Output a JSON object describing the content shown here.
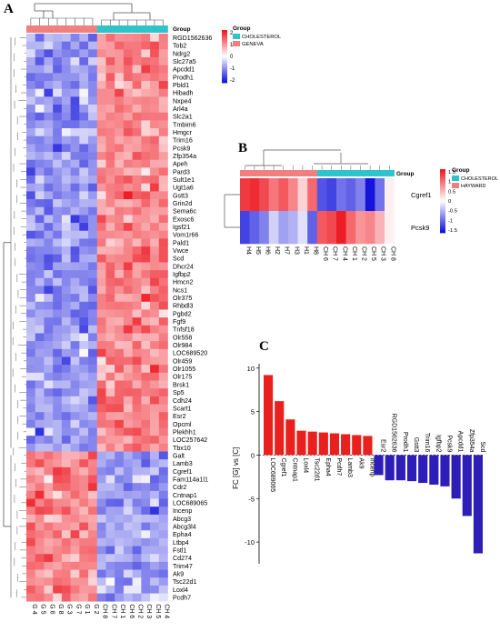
{
  "panels": {
    "a": {
      "letter": "A",
      "legend_title": "Group",
      "groups": [
        {
          "name": "CHOLESTEROL",
          "color": "#2EC4C9"
        },
        {
          "name": "GENEVA",
          "color": "#F08080"
        }
      ],
      "scale_ticks": [
        "2",
        "1",
        "0",
        "-1",
        "-2"
      ],
      "columns": [
        "G 4",
        "G 5",
        "G 6",
        "G 8",
        "G 3",
        "G 7",
        "G 1",
        "G 2",
        "CH 8",
        "CH 7",
        "CH 1",
        "CH 6",
        "CH 2",
        "CH 3",
        "CH 5",
        "CH 4"
      ],
      "column_groups": [
        "GENEVA",
        "GENEVA",
        "GENEVA",
        "GENEVA",
        "GENEVA",
        "GENEVA",
        "GENEVA",
        "GENEVA",
        "CHOLESTEROL",
        "CHOLESTEROL",
        "CHOLESTEROL",
        "CHOLESTEROL",
        "CHOLESTEROL",
        "CHOLESTEROL",
        "CHOLESTEROL",
        "CHOLESTEROL"
      ],
      "genes_up_in_cholesterol": [
        "RGD1562636",
        "Tob2",
        "Ndrg2",
        "Slc27a5",
        "Apcdd1",
        "Prodh1",
        "Pbld1",
        "Hibadh",
        "Nxpe4",
        "Arl4a",
        "Slc2a1",
        "Tmbim6",
        "Hmgcr",
        "Trim16",
        "Pcsk9",
        "Zfp354a",
        "Apeh",
        "Pard3",
        "Sult1e1",
        "Ugt1a6",
        "Gstt3",
        "Grin2d",
        "Sema6c",
        "Exosc6",
        "Igsf21",
        "Vom1r66",
        "Pald1",
        "Vwce",
        "Scd",
        "Dhcr24",
        "Igfbp2",
        "Hmcn2",
        "Ncs1",
        "Olr375",
        "Rhbdl3",
        "Pgbd2",
        "Fgf9",
        "Tnfsf18",
        "Olr558",
        "Olr984",
        "LOC689520",
        "Olr459",
        "Olr1055",
        "Olr175",
        "Brsk1",
        "Sp5",
        "Cdh24",
        "Scart1",
        "Esr2",
        "Opcml",
        "Plekhh1",
        "LOC257642",
        "Tbx10"
      ],
      "genes_down_in_cholesterol": [
        "Galt",
        "Lamb3",
        "Cgref1",
        "Fam114a1l1",
        "Cdr2",
        "Cntnap1",
        "LOC689065",
        "Incenp",
        "Abcg3",
        "Abcg3l4",
        "Epha4",
        "Ltbp4",
        "Fstl1",
        "Cd274",
        "Trim47",
        "Ak9",
        "Tsc22d1",
        "Loxl4",
        "Pcdh7"
      ]
    },
    "b": {
      "letter": "B",
      "legend_title": "Group",
      "groups": [
        {
          "name": "CHOLESTEROL",
          "color": "#2EC4C9"
        },
        {
          "name": "HAYWARD",
          "color": "#F08080"
        }
      ],
      "scale_ticks": [
        "1.5",
        "1",
        "0.5",
        "0",
        "-0.5",
        "-1",
        "-1.5"
      ],
      "columns": [
        "H4",
        "H5",
        "H6",
        "H2",
        "H7",
        "H3",
        "H1",
        "H8",
        "CH 6",
        "CH 7",
        "CH 4",
        "CH 1",
        "CH 2",
        "CH 5",
        "CH 3",
        "CH 8"
      ],
      "column_groups": [
        "HAYWARD",
        "HAYWARD",
        "HAYWARD",
        "HAYWARD",
        "HAYWARD",
        "HAYWARD",
        "HAYWARD",
        "HAYWARD",
        "CHOLESTEROL",
        "CHOLESTEROL",
        "CHOLESTEROL",
        "CHOLESTEROL",
        "CHOLESTEROL",
        "CHOLESTEROL",
        "CHOLESTEROL",
        "CHOLESTEROL"
      ],
      "rows": [
        {
          "gene": "Cgref1",
          "values": [
            1.3,
            1.4,
            1.2,
            0.9,
            1.1,
            0.8,
            0.3,
            1.0,
            -1.1,
            -1.2,
            -0.9,
            -1.0,
            -0.8,
            -1.5,
            -0.9,
            0.1
          ]
        },
        {
          "gene": "Pcsk9",
          "values": [
            -1.2,
            -1.0,
            -0.8,
            -0.3,
            -0.6,
            -0.5,
            -0.2,
            -1.0,
            1.1,
            1.2,
            1.5,
            1.0,
            0.7,
            0.8,
            0.5,
            0.1
          ]
        }
      ]
    },
    "c": {
      "letter": "C",
      "ylabel": "FC [G] vs [C]"
    }
  },
  "chart_data": {
    "type": "bar",
    "ylabel": "FC [G] vs [C]",
    "ylim": [
      -12.5,
      10.5
    ],
    "yticks": [
      10,
      5,
      0,
      -5,
      -10
    ],
    "up_color": "#E8211E",
    "down_color": "#2E1EB8",
    "categories": [
      "LOC689065",
      "Cgref1",
      "Cntnap1",
      "Loxl4",
      "Tsc22d1",
      "Epha4",
      "Pcdh7",
      "Lamb3",
      "Ak9",
      "Incenp",
      "Esr2",
      "RGD1562636",
      "Prodh1",
      "Gstt3",
      "Trim16",
      "Igfbp2",
      "Pcsk9",
      "Apcdd1",
      "Zfp354a",
      "Scd"
    ],
    "values": [
      9.2,
      6.2,
      4.1,
      2.8,
      2.7,
      2.6,
      2.5,
      2.4,
      2.3,
      2.2,
      -2.3,
      -2.9,
      -2.9,
      -3.0,
      -3.2,
      -3.4,
      -3.6,
      -5.0,
      -7.0,
      -11.3
    ]
  }
}
